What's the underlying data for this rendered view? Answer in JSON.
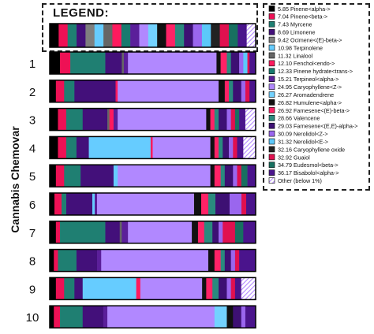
{
  "chart_data": {
    "type": "bar",
    "ylabel": "Cannabis Chemovar",
    "legend_title": "LEGEND:",
    "compounds": [
      {
        "name": "5.85 Pinene<alpha->",
        "color": "#000000",
        "pattern": "solid"
      },
      {
        "name": "7.04 Pinene<beta->",
        "color": "#ee1155",
        "pattern": "solid"
      },
      {
        "name": "7.43 Myrcene",
        "color": "#1f7f72",
        "pattern": "solid"
      },
      {
        "name": "8.69 Limonene",
        "color": "#43107a",
        "pattern": "solid"
      },
      {
        "name": "9.42 Ocimene<(E)-beta->",
        "color": "#7f7f7f",
        "pattern": "solid"
      },
      {
        "name": "10.98 Terpinolene",
        "color": "#66ccff",
        "pattern": "solid"
      },
      {
        "name": "11.32 Linalool",
        "color": "#666666",
        "pattern": "solid"
      },
      {
        "name": "12.10 Fenchol<endo->",
        "color": "#ff1a5e",
        "pattern": "solid"
      },
      {
        "name": "12.33 Pinene hydrate<trans->",
        "color": "#187a6f",
        "pattern": "solid"
      },
      {
        "name": "15.21 Terpineol<alpha->",
        "color": "#5b1f9a",
        "pattern": "solid"
      },
      {
        "name": "24.95 Caryophyllene<Z->",
        "color": "#b188ff",
        "pattern": "solid"
      },
      {
        "name": "26.27 Aromadendrene",
        "color": "#73d2ff",
        "pattern": "solid"
      },
      {
        "name": "26.82 Humulene<alpha->",
        "color": "#111111",
        "pattern": "solid"
      },
      {
        "name": "26.92 Farnesene<(E)-beta->",
        "color": "#ff2266",
        "pattern": "solid"
      },
      {
        "name": "28.66 Valencene",
        "color": "#2a8a7e",
        "pattern": "solid"
      },
      {
        "name": "29.03 Farnesene<(E,E)-alpha->",
        "color": "#3d1073",
        "pattern": "solid"
      },
      {
        "name": "30.09 Nerolidol<Z->",
        "color": "#9a66ee",
        "pattern": "solid"
      },
      {
        "name": "31.32 Nerolidol<E->",
        "color": "#5cc8fa",
        "pattern": "solid"
      },
      {
        "name": "32.16 Caryophyllene oxide",
        "color": "#222222",
        "pattern": "solid"
      },
      {
        "name": "32.92 Guaiol",
        "color": "#e0104f",
        "pattern": "solid"
      },
      {
        "name": "34.79 Eudesmol<beta->",
        "color": "#177060",
        "pattern": "solid"
      },
      {
        "name": "36.17 Bisabolol<alpha->",
        "color": "#4a148c",
        "pattern": "solid"
      },
      {
        "name": "Other (below 1%)",
        "color": "#b388ff",
        "pattern": "hatch"
      }
    ],
    "legend_bar": [
      5.85,
      7.04,
      7.43,
      8.69,
      9.42,
      10.98,
      11.32,
      12.1,
      12.33,
      15.21,
      24.95,
      26.27,
      26.82,
      26.92,
      28.66,
      29.03,
      30.09,
      31.32,
      32.16,
      32.92,
      34.79,
      36.17,
      "Other"
    ],
    "categories": [
      "1",
      "2",
      "3",
      "4",
      "5",
      "6",
      "7",
      "8",
      "9",
      "10"
    ],
    "bars": [
      {
        "label": "1",
        "segments": [
          {
            "c": "5.85 Pinene<alpha->",
            "v": 5
          },
          {
            "c": "7.04 Pinene<beta->",
            "v": 5
          },
          {
            "c": "7.43 Myrcene",
            "v": 17
          },
          {
            "c": "8.69 Limonene",
            "v": 8
          },
          {
            "c": "11.32 Linalool",
            "v": 1
          },
          {
            "c": "15.21 Terpineol<alpha->",
            "v": 2
          },
          {
            "c": "24.95 Caryophyllene<Z->",
            "v": 43
          },
          {
            "c": "26.82 Humulene<alpha->",
            "v": 2
          },
          {
            "c": "26.92 Farnesene<(E)-beta->",
            "v": 3
          },
          {
            "c": "28.66 Valencene",
            "v": 2
          },
          {
            "c": "29.03 Farnesene<(E,E)-alpha->",
            "v": 4
          },
          {
            "c": "30.09 Nerolidol<Z->",
            "v": 2
          },
          {
            "c": "31.32 Nerolidol<E->",
            "v": 2
          },
          {
            "c": "32.92 Guaiol",
            "v": 1
          },
          {
            "c": "36.17 Bisabolol<alpha->",
            "v": 3
          }
        ]
      },
      {
        "label": "2",
        "segments": [
          {
            "c": "5.85 Pinene<alpha->",
            "v": 3
          },
          {
            "c": "7.04 Pinene<beta->",
            "v": 4
          },
          {
            "c": "7.43 Myrcene",
            "v": 5
          },
          {
            "c": "8.69 Limonene",
            "v": 20
          },
          {
            "c": "12.10 Fenchol<endo->",
            "v": 1
          },
          {
            "c": "24.95 Caryophyllene<Z->",
            "v": 49
          },
          {
            "c": "26.82 Humulene<alpha->",
            "v": 3
          },
          {
            "c": "26.92 Farnesene<(E)-beta->",
            "v": 2
          },
          {
            "c": "28.66 Valencene",
            "v": 2
          },
          {
            "c": "29.03 Farnesene<(E,E)-alpha->",
            "v": 4
          },
          {
            "c": "30.09 Nerolidol<Z->",
            "v": 2
          },
          {
            "c": "32.92 Guaiol",
            "v": 2
          },
          {
            "c": "36.17 Bisabolol<alpha->",
            "v": 3
          }
        ]
      },
      {
        "label": "3",
        "segments": [
          {
            "c": "5.85 Pinene<alpha->",
            "v": 4
          },
          {
            "c": "7.04 Pinene<beta->",
            "v": 4
          },
          {
            "c": "7.43 Myrcene",
            "v": 8
          },
          {
            "c": "8.69 Limonene",
            "v": 12
          },
          {
            "c": "11.32 Linalool",
            "v": 1
          },
          {
            "c": "12.10 Fenchol<endo->",
            "v": 2
          },
          {
            "c": "15.21 Terpineol<alpha->",
            "v": 2
          },
          {
            "c": "24.95 Caryophyllene<Z->",
            "v": 43
          },
          {
            "c": "26.82 Humulene<alpha->",
            "v": 2
          },
          {
            "c": "26.92 Farnesene<(E)-beta->",
            "v": 2
          },
          {
            "c": "28.66 Valencene",
            "v": 2
          },
          {
            "c": "29.03 Farnesene<(E,E)-alpha->",
            "v": 4
          },
          {
            "c": "30.09 Nerolidol<Z->",
            "v": 2
          },
          {
            "c": "32.92 Guaiol",
            "v": 2
          },
          {
            "c": "34.79 Eudesmol<beta->",
            "v": 2
          },
          {
            "c": "36.17 Bisabolol<alpha->",
            "v": 3
          },
          {
            "c": "Other (below 1%)",
            "v": 5
          }
        ]
      },
      {
        "label": "4",
        "segments": [
          {
            "c": "5.85 Pinene<alpha->",
            "v": 4
          },
          {
            "c": "7.04 Pinene<beta->",
            "v": 4
          },
          {
            "c": "7.43 Myrcene",
            "v": 5
          },
          {
            "c": "8.69 Limonene",
            "v": 6
          },
          {
            "c": "10.98 Terpinolene",
            "v": 30
          },
          {
            "c": "12.10 Fenchol<endo->",
            "v": 1
          },
          {
            "c": "24.95 Caryophyllene<Z->",
            "v": 28
          },
          {
            "c": "26.82 Humulene<alpha->",
            "v": 2
          },
          {
            "c": "26.92 Farnesene<(E)-beta->",
            "v": 2
          },
          {
            "c": "28.66 Valencene",
            "v": 2
          },
          {
            "c": "29.03 Farnesene<(E,E)-alpha->",
            "v": 3
          },
          {
            "c": "30.09 Nerolidol<Z->",
            "v": 2
          },
          {
            "c": "32.92 Guaiol",
            "v": 2
          },
          {
            "c": "36.17 Bisabolol<alpha->",
            "v": 3
          },
          {
            "c": "Other (below 1%)",
            "v": 6
          }
        ]
      },
      {
        "label": "5",
        "segments": [
          {
            "c": "5.85 Pinene<alpha->",
            "v": 3
          },
          {
            "c": "7.04 Pinene<beta->",
            "v": 4
          },
          {
            "c": "7.43 Myrcene",
            "v": 8
          },
          {
            "c": "8.69 Limonene",
            "v": 16
          },
          {
            "c": "10.98 Terpinolene",
            "v": 2
          },
          {
            "c": "24.95 Caryophyllene<Z->",
            "v": 45
          },
          {
            "c": "26.82 Humulene<alpha->",
            "v": 2
          },
          {
            "c": "26.92 Farnesene<(E)-beta->",
            "v": 3
          },
          {
            "c": "28.66 Valencene",
            "v": 2
          },
          {
            "c": "29.03 Farnesene<(E,E)-alpha->",
            "v": 4
          },
          {
            "c": "30.09 Nerolidol<Z->",
            "v": 2
          },
          {
            "c": "32.92 Guaiol",
            "v": 2
          },
          {
            "c": "34.79 Eudesmol<beta->",
            "v": 3
          },
          {
            "c": "36.17 Bisabolol<alpha->",
            "v": 4
          }
        ]
      },
      {
        "label": "6",
        "segments": [
          {
            "c": "5.85 Pinene<alpha->",
            "v": 2
          },
          {
            "c": "7.04 Pinene<beta->",
            "v": 3
          },
          {
            "c": "7.43 Myrcene",
            "v": 2
          },
          {
            "c": "8.69 Limonene",
            "v": 11
          },
          {
            "c": "10.98 Terpinolene",
            "v": 1
          },
          {
            "c": "15.21 Terpineol<alpha->",
            "v": 1
          },
          {
            "c": "24.95 Caryophyllene<Z->",
            "v": 41
          },
          {
            "c": "26.82 Humulene<alpha->",
            "v": 3
          },
          {
            "c": "26.92 Farnesene<(E)-beta->",
            "v": 3
          },
          {
            "c": "28.66 Valencene",
            "v": 3
          },
          {
            "c": "29.03 Farnesene<(E,E)-alpha->",
            "v": 6
          },
          {
            "c": "30.09 Nerolidol<Z->",
            "v": 5
          },
          {
            "c": "32.92 Guaiol",
            "v": 2
          },
          {
            "c": "36.17 Bisabolol<alpha->",
            "v": 4
          }
        ]
      },
      {
        "label": "7",
        "segments": [
          {
            "c": "5.85 Pinene<alpha->",
            "v": 3
          },
          {
            "c": "7.04 Pinene<beta->",
            "v": 2
          },
          {
            "c": "7.43 Myrcene",
            "v": 22
          },
          {
            "c": "8.69 Limonene",
            "v": 7
          },
          {
            "c": "11.32 Linalool",
            "v": 1
          },
          {
            "c": "15.21 Terpineol<alpha->",
            "v": 3
          },
          {
            "c": "24.95 Caryophyllene<Z->",
            "v": 31
          },
          {
            "c": "26.82 Humulene<alpha->",
            "v": 3
          },
          {
            "c": "26.92 Farnesene<(E)-beta->",
            "v": 3
          },
          {
            "c": "28.66 Valencene",
            "v": 4
          },
          {
            "c": "29.03 Farnesene<(E,E)-alpha->",
            "v": 3
          },
          {
            "c": "30.09 Nerolidol<Z->",
            "v": 2
          },
          {
            "c": "32.92 Guaiol",
            "v": 6
          },
          {
            "c": "34.79 Eudesmol<beta->",
            "v": 4
          },
          {
            "c": "36.17 Bisabolol<alpha->",
            "v": 6
          }
        ]
      },
      {
        "label": "8",
        "segments": [
          {
            "c": "5.85 Pinene<alpha->",
            "v": 2
          },
          {
            "c": "7.04 Pinene<beta->",
            "v": 2
          },
          {
            "c": "7.43 Myrcene",
            "v": 9
          },
          {
            "c": "8.69 Limonene",
            "v": 10
          },
          {
            "c": "15.21 Terpineol<alpha->",
            "v": 2
          },
          {
            "c": "24.95 Caryophyllene<Z->",
            "v": 52
          },
          {
            "c": "26.82 Humulene<alpha->",
            "v": 3
          },
          {
            "c": "26.92 Farnesene<(E)-beta->",
            "v": 3
          },
          {
            "c": "28.66 Valencene",
            "v": 2
          },
          {
            "c": "29.03 Farnesene<(E,E)-alpha->",
            "v": 3
          },
          {
            "c": "30.09 Nerolidol<Z->",
            "v": 2
          },
          {
            "c": "32.92 Guaiol",
            "v": 2
          },
          {
            "c": "36.17 Bisabolol<alpha->",
            "v": 8
          }
        ]
      },
      {
        "label": "9",
        "segments": [
          {
            "c": "5.85 Pinene<alpha->",
            "v": 3
          },
          {
            "c": "7.04 Pinene<beta->",
            "v": 4
          },
          {
            "c": "7.43 Myrcene",
            "v": 5
          },
          {
            "c": "8.69 Limonene",
            "v": 4
          },
          {
            "c": "10.98 Terpinolene",
            "v": 26
          },
          {
            "c": "12.10 Fenchol<endo->",
            "v": 2
          },
          {
            "c": "24.95 Caryophyllene<Z->",
            "v": 30
          },
          {
            "c": "26.82 Humulene<alpha->",
            "v": 2
          },
          {
            "c": "26.92 Farnesene<(E)-beta->",
            "v": 3
          },
          {
            "c": "28.66 Valencene",
            "v": 3
          },
          {
            "c": "29.03 Farnesene<(E,E)-alpha->",
            "v": 4
          },
          {
            "c": "30.09 Nerolidol<Z->",
            "v": 2
          },
          {
            "c": "32.92 Guaiol",
            "v": 2
          },
          {
            "c": "36.17 Bisabolol<alpha->",
            "v": 3
          },
          {
            "c": "Other (below 1%)",
            "v": 7
          }
        ]
      },
      {
        "label": "10",
        "segments": [
          {
            "c": "5.85 Pinene<alpha->",
            "v": 2
          },
          {
            "c": "7.04 Pinene<beta->",
            "v": 3
          },
          {
            "c": "7.43 Myrcene",
            "v": 11
          },
          {
            "c": "8.69 Limonene",
            "v": 10
          },
          {
            "c": "15.21 Terpineol<alpha->",
            "v": 2
          },
          {
            "c": "24.95 Caryophyllene<Z->",
            "v": 52
          },
          {
            "c": "26.27 Aromadendrene",
            "v": 6
          },
          {
            "c": "26.82 Humulene<alpha->",
            "v": 3
          },
          {
            "c": "29.03 Farnesene<(E,E)-alpha->",
            "v": 4
          },
          {
            "c": "30.09 Nerolidol<Z->",
            "v": 2
          },
          {
            "c": "36.17 Bisabolol<alpha->",
            "v": 5
          }
        ]
      }
    ]
  }
}
